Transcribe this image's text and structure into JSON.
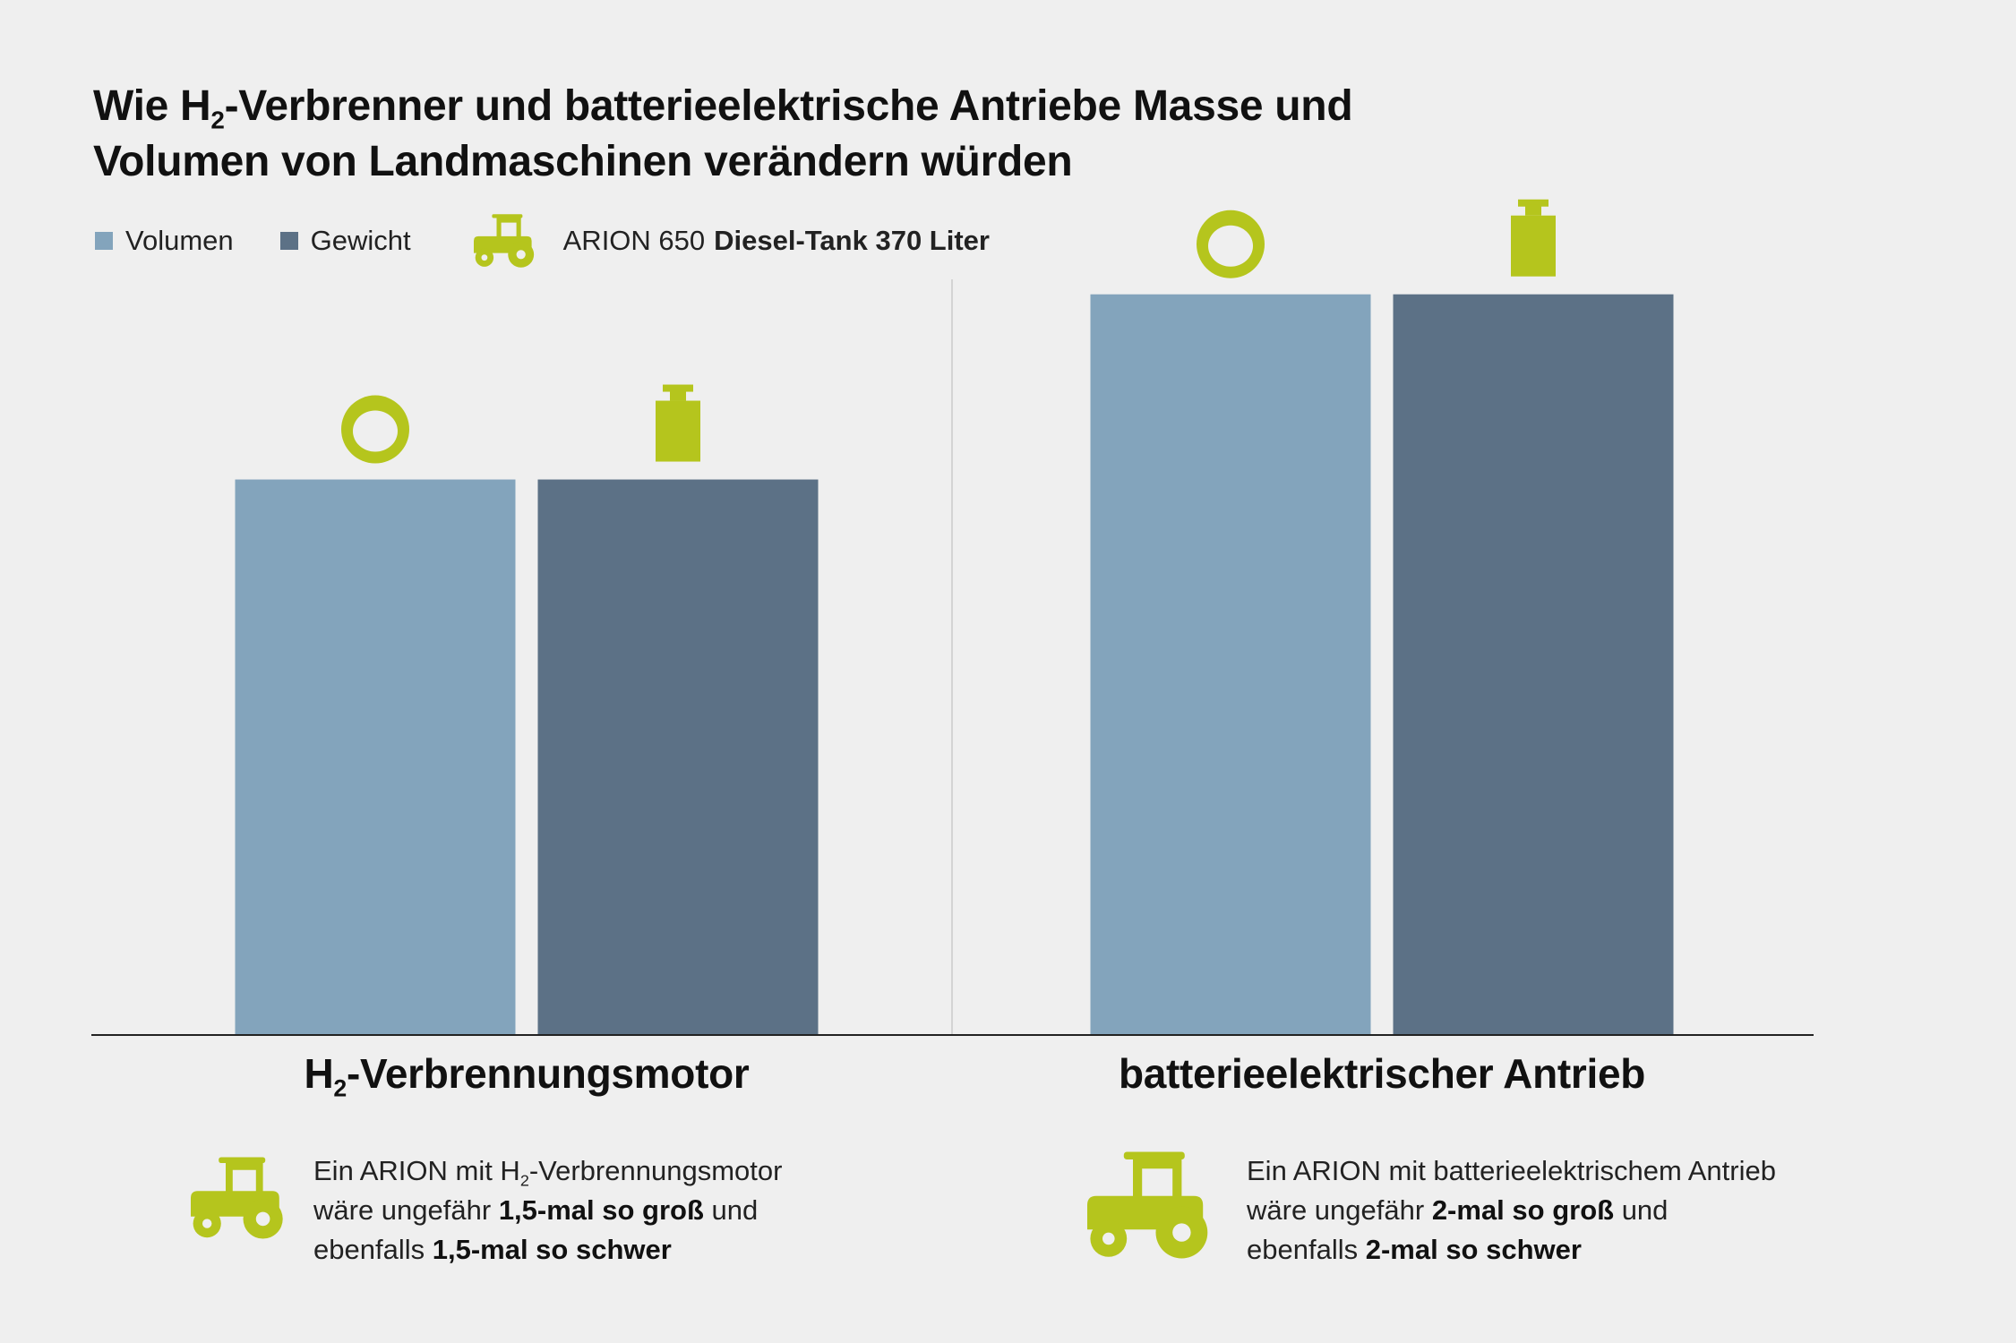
{
  "title_line1_pre": "Wie H",
  "title_line1_sub": "2",
  "title_line1_post": "-Verbrenner und batterieelektrische Antriebe Masse und",
  "title_line2": "Volumen von Landmaschinen verändern würden",
  "legend": {
    "volume_label": "Volumen",
    "weight_label": "Gewicht",
    "reference_model": "ARION 650",
    "reference_value": "Diesel-Tank 370 Liter"
  },
  "icons": {
    "volume_marker": "ring-icon",
    "weight_marker": "weight-icon",
    "reference": "tractor-icon"
  },
  "colors": {
    "background": "#efefef",
    "volume": "#83a4bc",
    "weight": "#5c7186",
    "accent": "#b5c51d",
    "axis": "#222222",
    "separator": "#d3d3d3"
  },
  "chart_data": {
    "type": "bar",
    "categories": [
      "H2-Verbrennungsmotor",
      "batterieelektrischer Antrieb"
    ],
    "series": [
      {
        "name": "Volumen",
        "values": [
          1.5,
          2.0
        ]
      },
      {
        "name": "Gewicht",
        "values": [
          1.5,
          2.0
        ]
      }
    ],
    "ylim": [
      0,
      2.2
    ],
    "grid": false,
    "legend_position": "top-left"
  },
  "categories": {
    "h2": {
      "label_pre": "H",
      "label_sub": "2",
      "label_post": "-Verbrennungsmotor"
    },
    "battery": {
      "label": "batterieelektrischer Antrieb"
    }
  },
  "notes": {
    "h2": {
      "line1_pre": "Ein ARION mit H",
      "line1_sub": "2",
      "line1_post": "-Verbrennungsmotor",
      "line2_pre": "wäre ungefähr ",
      "line2_bold": "1,5-mal so groß",
      "line2_post": " und",
      "line3_pre": "ebenfalls ",
      "line3_bold": "1,5-mal so schwer"
    },
    "battery": {
      "line1": "Ein ARION mit batterieelektrischem Antrieb",
      "line2_pre": "wäre ungefähr ",
      "line2_bold": "2-mal so groß",
      "line2_post": " und",
      "line3_pre": "ebenfalls ",
      "line3_bold": "2-mal so schwer"
    }
  }
}
